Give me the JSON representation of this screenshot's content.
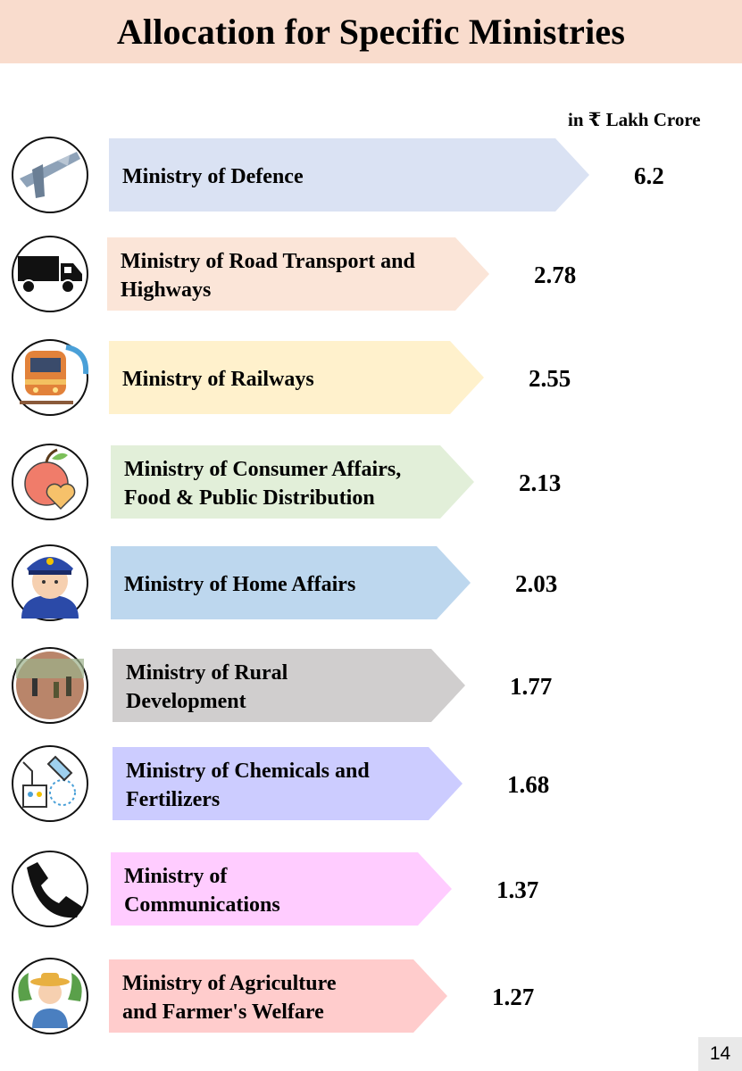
{
  "title": "Allocation for Specific Ministries",
  "unit_label": "in ₹ Lakh Crore",
  "page_number": "14",
  "chart_data": {
    "type": "bar",
    "orientation": "horizontal",
    "title": "Allocation for Specific Ministries",
    "unit": "in ₹ Lakh Crore",
    "categories": [
      [
        "Ministry of Defence"
      ],
      [
        "Ministry of Road Transport and",
        "Highways"
      ],
      [
        "Ministry of Railways"
      ],
      [
        "Ministry of Consumer Affairs,",
        "Food & Public Distribution"
      ],
      [
        "Ministry of Home Affairs"
      ],
      [
        "Ministry of Rural",
        "Development"
      ],
      [
        "Ministry of Chemicals and",
        "Fertilizers"
      ],
      [
        "Ministry of",
        "Communications"
      ],
      [
        "Ministry of Agriculture",
        "and Farmer's Welfare"
      ]
    ],
    "values": [
      6.2,
      2.78,
      2.55,
      2.13,
      2.03,
      1.77,
      1.68,
      1.37,
      1.27
    ],
    "value_labels": [
      "6.2",
      "2.78",
      "2.55",
      "2.13",
      "2.03",
      "1.77",
      "1.68",
      "1.37",
      "1.27"
    ],
    "colors": [
      "#dae2f3",
      "#fbe5d8",
      "#fff1cc",
      "#e2efd9",
      "#bdd7ee",
      "#d0cece",
      "#ccccff",
      "#ffccff",
      "#ffcccc"
    ],
    "icons": [
      "aircraft-carrier-icon",
      "truck-icon",
      "train-icon",
      "apple-heart-icon",
      "police-officer-icon",
      "rural-workers-icon",
      "chemistry-lab-icon",
      "telephone-icon",
      "farmer-icon"
    ]
  }
}
